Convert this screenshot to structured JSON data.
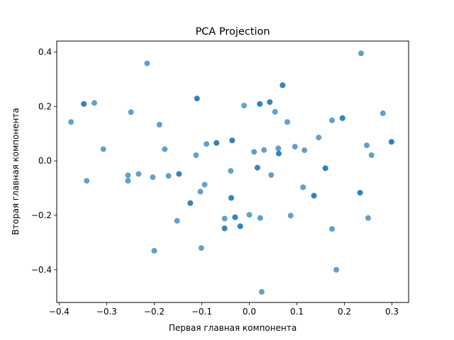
{
  "chart_data": {
    "type": "scatter",
    "title": "PCA Projection",
    "xlabel": "Первая главная компонента",
    "ylabel": "Вторая главная компонента",
    "xlim": [
      -0.405,
      0.335
    ],
    "ylim": [
      -0.52,
      0.44
    ],
    "xticks": [
      -0.4,
      -0.3,
      -0.2,
      -0.1,
      0.0,
      0.1,
      0.2,
      0.3
    ],
    "xtick_labels": [
      "−0.4",
      "−0.3",
      "−0.2",
      "−0.1",
      "0.0",
      "0.1",
      "0.2",
      "0.3"
    ],
    "yticks": [
      -0.4,
      -0.2,
      0.0,
      0.2,
      0.4
    ],
    "ytick_labels": [
      "−0.4",
      "−0.2",
      "0.0",
      "0.2",
      "0.4"
    ],
    "grid": false,
    "marker_color": "#1f77b4",
    "marker_alpha": 0.7,
    "points": [
      {
        "x": -0.375,
        "y": 0.143
      },
      {
        "x": -0.348,
        "y": 0.209
      },
      {
        "x": -0.348,
        "y": 0.209
      },
      {
        "x": -0.326,
        "y": 0.213
      },
      {
        "x": -0.342,
        "y": -0.073
      },
      {
        "x": -0.307,
        "y": 0.043
      },
      {
        "x": -0.255,
        "y": -0.053
      },
      {
        "x": -0.255,
        "y": -0.073
      },
      {
        "x": -0.249,
        "y": 0.179
      },
      {
        "x": -0.233,
        "y": -0.048
      },
      {
        "x": -0.215,
        "y": 0.358
      },
      {
        "x": -0.203,
        "y": -0.06
      },
      {
        "x": -0.2,
        "y": -0.33
      },
      {
        "x": -0.189,
        "y": 0.133
      },
      {
        "x": -0.178,
        "y": 0.043
      },
      {
        "x": -0.17,
        "y": -0.055
      },
      {
        "x": -0.152,
        "y": -0.22
      },
      {
        "x": -0.148,
        "y": -0.048
      },
      {
        "x": -0.148,
        "y": -0.048
      },
      {
        "x": -0.124,
        "y": -0.155
      },
      {
        "x": -0.124,
        "y": -0.155
      },
      {
        "x": -0.112,
        "y": 0.021
      },
      {
        "x": -0.11,
        "y": 0.229
      },
      {
        "x": -0.11,
        "y": 0.229
      },
      {
        "x": -0.103,
        "y": -0.113
      },
      {
        "x": -0.101,
        "y": -0.32
      },
      {
        "x": -0.094,
        "y": -0.087
      },
      {
        "x": -0.09,
        "y": 0.062
      },
      {
        "x": -0.069,
        "y": 0.066
      },
      {
        "x": -0.069,
        "y": 0.066
      },
      {
        "x": -0.052,
        "y": -0.212
      },
      {
        "x": -0.052,
        "y": -0.248
      },
      {
        "x": -0.052,
        "y": -0.248
      },
      {
        "x": -0.039,
        "y": -0.037
      },
      {
        "x": -0.038,
        "y": -0.136
      },
      {
        "x": -0.038,
        "y": -0.136
      },
      {
        "x": -0.036,
        "y": 0.075
      },
      {
        "x": -0.036,
        "y": 0.075
      },
      {
        "x": -0.03,
        "y": -0.207
      },
      {
        "x": -0.03,
        "y": -0.207
      },
      {
        "x": -0.019,
        "y": -0.24
      },
      {
        "x": -0.019,
        "y": -0.24
      },
      {
        "x": -0.011,
        "y": 0.203
      },
      {
        "x": 0.0,
        "y": -0.198
      },
      {
        "x": 0.01,
        "y": 0.033
      },
      {
        "x": 0.017,
        "y": -0.025
      },
      {
        "x": 0.017,
        "y": -0.025
      },
      {
        "x": 0.022,
        "y": 0.209
      },
      {
        "x": 0.022,
        "y": 0.209
      },
      {
        "x": 0.023,
        "y": -0.21
      },
      {
        "x": 0.026,
        "y": -0.481
      },
      {
        "x": 0.031,
        "y": 0.04
      },
      {
        "x": 0.043,
        "y": 0.216
      },
      {
        "x": 0.043,
        "y": 0.216
      },
      {
        "x": 0.046,
        "y": -0.052
      },
      {
        "x": 0.054,
        "y": 0.18
      },
      {
        "x": 0.061,
        "y": 0.046
      },
      {
        "x": 0.062,
        "y": 0.027
      },
      {
        "x": 0.062,
        "y": 0.027
      },
      {
        "x": 0.07,
        "y": 0.278
      },
      {
        "x": 0.07,
        "y": 0.278
      },
      {
        "x": 0.08,
        "y": 0.143
      },
      {
        "x": 0.087,
        "y": -0.201
      },
      {
        "x": 0.096,
        "y": 0.052
      },
      {
        "x": 0.113,
        "y": -0.097
      },
      {
        "x": 0.116,
        "y": 0.039
      },
      {
        "x": 0.136,
        "y": -0.128
      },
      {
        "x": 0.136,
        "y": -0.128
      },
      {
        "x": 0.146,
        "y": 0.086
      },
      {
        "x": 0.16,
        "y": -0.027
      },
      {
        "x": 0.16,
        "y": -0.027
      },
      {
        "x": 0.174,
        "y": 0.149
      },
      {
        "x": 0.174,
        "y": -0.25
      },
      {
        "x": 0.183,
        "y": -0.4
      },
      {
        "x": 0.196,
        "y": 0.157
      },
      {
        "x": 0.196,
        "y": 0.157
      },
      {
        "x": 0.233,
        "y": -0.117
      },
      {
        "x": 0.233,
        "y": -0.117
      },
      {
        "x": 0.235,
        "y": 0.395
      },
      {
        "x": 0.247,
        "y": 0.057
      },
      {
        "x": 0.25,
        "y": -0.21
      },
      {
        "x": 0.257,
        "y": 0.021
      },
      {
        "x": 0.281,
        "y": 0.175
      },
      {
        "x": 0.299,
        "y": 0.07
      },
      {
        "x": 0.299,
        "y": 0.07
      }
    ]
  }
}
